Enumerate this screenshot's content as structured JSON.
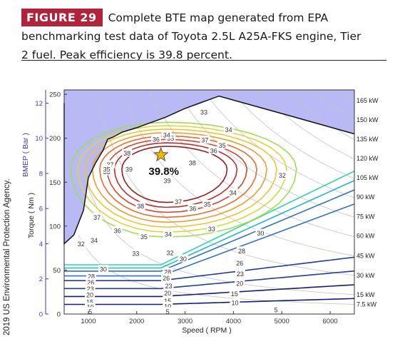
{
  "figure": {
    "badge": "FIGURE 29",
    "caption_lines": [
      "Complete BTE map generated from EPA",
      "benchmarking test data of Toyota 2.5L A25A-FKS engine, Tier",
      "2 fuel. Peak efficiency is 39.8 percent."
    ],
    "credit": "2019 US Environmental Protection Agency."
  },
  "chart_data": {
    "type": "contour",
    "xlabel": "Speed ( RPM )",
    "ylabel": "Torque ( Nm )",
    "y2label": "BMEP ( Bar )",
    "xlim": [
      500,
      6500
    ],
    "ylim": [
      0,
      255
    ],
    "y2lim": [
      0,
      12.75
    ],
    "x_ticks": [
      1000,
      2000,
      3000,
      4000,
      5000,
      6000
    ],
    "y_ticks": [
      0,
      50,
      100,
      150,
      200,
      250
    ],
    "y2_ticks": [
      0,
      2,
      4,
      6,
      8,
      10,
      12
    ],
    "peak": {
      "rpm": 2500,
      "torque": 181,
      "label": "39.8%"
    },
    "max_torque_curve": [
      [
        500,
        240
      ],
      [
        500,
        80
      ],
      [
        700,
        90
      ],
      [
        900,
        118
      ],
      [
        1000,
        155
      ],
      [
        1150,
        172
      ],
      [
        1300,
        186
      ],
      [
        1400,
        199
      ],
      [
        1500,
        201
      ],
      [
        1700,
        207
      ],
      [
        2000,
        212
      ],
      [
        2300,
        218
      ],
      [
        2600,
        224
      ],
      [
        3000,
        234
      ],
      [
        3300,
        240
      ],
      [
        3700,
        248
      ],
      [
        5200,
        225
      ],
      [
        6500,
        205
      ]
    ],
    "power_labels": [
      {
        "label": "165 kW",
        "torque": 243
      },
      {
        "label": "150 kW",
        "torque": 221
      },
      {
        "label": "135 kW",
        "torque": 199
      },
      {
        "label": "120 kW",
        "torque": 177
      },
      {
        "label": "105 kW",
        "torque": 155
      },
      {
        "label": "90 kW",
        "torque": 133
      },
      {
        "label": "75 kW",
        "torque": 111
      },
      {
        "label": "60 kW",
        "torque": 89
      },
      {
        "label": "45 kW",
        "torque": 66
      },
      {
        "label": "30 kW",
        "torque": 44
      },
      {
        "label": "15 kW",
        "torque": 22
      },
      {
        "label": "7.5 kW",
        "torque": 11
      }
    ],
    "contour_levels": [
      5,
      10,
      15,
      20,
      23,
      26,
      28,
      30,
      32,
      33,
      34,
      35,
      36,
      37,
      38,
      39
    ],
    "contour_labels": [
      {
        "text": "39",
        "rpm": 1840,
        "torque": 165
      },
      {
        "text": "39",
        "rpm": 2630,
        "torque": 152
      },
      {
        "text": "38",
        "rpm": 1800,
        "torque": 183
      },
      {
        "text": "38",
        "rpm": 3150,
        "torque": 172
      },
      {
        "text": "38",
        "rpm": 2080,
        "torque": 123
      },
      {
        "text": "38",
        "rpm": 1380,
        "torque": 162
      },
      {
        "text": "37",
        "rpm": 1450,
        "torque": 170
      },
      {
        "text": "37",
        "rpm": 1180,
        "torque": 110
      },
      {
        "text": "37",
        "rpm": 2860,
        "torque": 128
      },
      {
        "text": "37",
        "rpm": 3410,
        "torque": 198
      },
      {
        "text": "36",
        "rpm": 1600,
        "torque": 95
      },
      {
        "text": "36",
        "rpm": 3590,
        "torque": 186
      },
      {
        "text": "36",
        "rpm": 3160,
        "torque": 120
      },
      {
        "text": "36",
        "rpm": 2400,
        "torque": 199
      },
      {
        "text": "35",
        "rpm": 2150,
        "torque": 88
      },
      {
        "text": "35",
        "rpm": 3770,
        "torque": 192
      },
      {
        "text": "35",
        "rpm": 2700,
        "torque": 200
      },
      {
        "text": "35",
        "rpm": 3460,
        "torque": 125
      },
      {
        "text": "35",
        "rpm": 1380,
        "torque": 165
      },
      {
        "text": "34",
        "rpm": 2650,
        "torque": 91
      },
      {
        "text": "34",
        "rpm": 3900,
        "torque": 210
      },
      {
        "text": "34",
        "rpm": 3990,
        "torque": 138
      },
      {
        "text": "34",
        "rpm": 1120,
        "torque": 84
      },
      {
        "text": "34",
        "rpm": 2620,
        "torque": 204
      },
      {
        "text": "33",
        "rpm": 1980,
        "torque": 69
      },
      {
        "text": "33",
        "rpm": 3390,
        "torque": 230
      },
      {
        "text": "33",
        "rpm": 3550,
        "torque": 97
      },
      {
        "text": "32",
        "rpm": 2690,
        "torque": 70
      },
      {
        "text": "32",
        "rpm": 5010,
        "torque": 158
      },
      {
        "text": "32",
        "rpm": 850,
        "torque": 80
      },
      {
        "text": "30",
        "rpm": 1310,
        "torque": 51
      },
      {
        "text": "30",
        "rpm": 2960,
        "torque": 63
      },
      {
        "text": "30",
        "rpm": 4560,
        "torque": 92
      },
      {
        "text": "28",
        "rpm": 1060,
        "torque": 43
      },
      {
        "text": "28",
        "rpm": 2640,
        "torque": 48
      },
      {
        "text": "28",
        "rpm": 4170,
        "torque": 72
      },
      {
        "text": "26",
        "rpm": 1050,
        "torque": 36
      },
      {
        "text": "26",
        "rpm": 2610,
        "torque": 41
      },
      {
        "text": "26",
        "rpm": 4130,
        "torque": 58
      },
      {
        "text": "23",
        "rpm": 1040,
        "torque": 29
      },
      {
        "text": "23",
        "rpm": 2660,
        "torque": 32
      },
      {
        "text": "23",
        "rpm": 4140,
        "torque": 46
      },
      {
        "text": "20",
        "rpm": 1030,
        "torque": 22
      },
      {
        "text": "20",
        "rpm": 2640,
        "torque": 24
      },
      {
        "text": "20",
        "rpm": 4130,
        "torque": 35
      },
      {
        "text": "15",
        "rpm": 1030,
        "torque": 14
      },
      {
        "text": "15",
        "rpm": 2640,
        "torque": 15
      },
      {
        "text": "15",
        "rpm": 4020,
        "torque": 23
      },
      {
        "text": "10",
        "rpm": 1040,
        "torque": 8
      },
      {
        "text": "10",
        "rpm": 2640,
        "torque": 9
      },
      {
        "text": "10",
        "rpm": 4030,
        "torque": 13
      },
      {
        "text": "5",
        "rpm": 1040,
        "torque": 3
      },
      {
        "text": "5",
        "rpm": 2640,
        "torque": 3
      },
      {
        "text": "5",
        "rpm": 4880,
        "torque": 5
      }
    ],
    "colors": {
      "background_region": "#b9b9f5",
      "border_line": "#111111",
      "star": "#f2b700",
      "axis_blue": "#3a3ad0"
    }
  }
}
